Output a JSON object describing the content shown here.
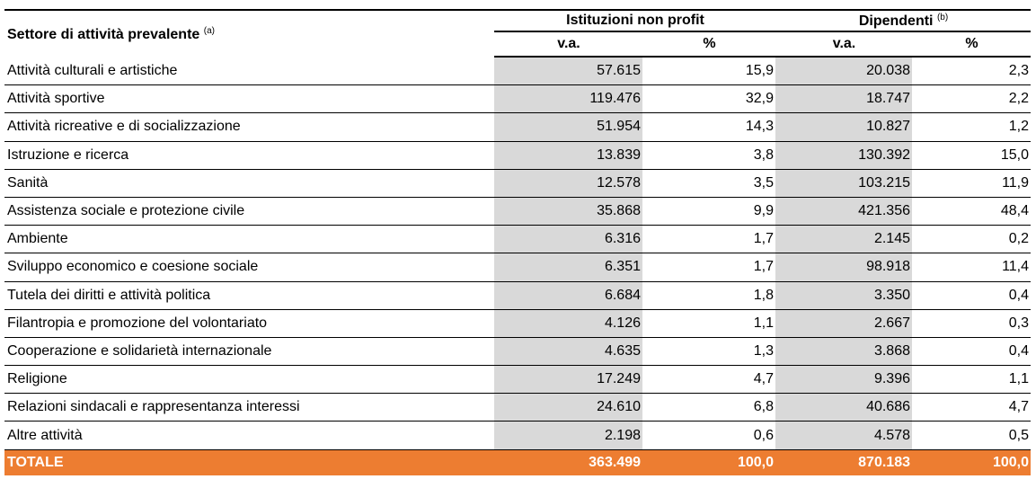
{
  "header": {
    "sector_label": "Settore di attività prevalente",
    "sector_note": "(a)",
    "group1_label": "Istituzioni non profit",
    "group2_label": "Dipendenti",
    "group2_note": "(b)",
    "sub_va": "v.a.",
    "sub_pct": "%"
  },
  "rows": [
    {
      "label": "Attività culturali e artistiche",
      "ist_va": "57.615",
      "ist_pct": "15,9",
      "dip_va": "20.038",
      "dip_pct": "2,3"
    },
    {
      "label": "Attività sportive",
      "ist_va": "119.476",
      "ist_pct": "32,9",
      "dip_va": "18.747",
      "dip_pct": "2,2"
    },
    {
      "label": "Attività ricreative e di socializzazione",
      "ist_va": "51.954",
      "ist_pct": "14,3",
      "dip_va": "10.827",
      "dip_pct": "1,2"
    },
    {
      "label": "Istruzione e ricerca",
      "ist_va": "13.839",
      "ist_pct": "3,8",
      "dip_va": "130.392",
      "dip_pct": "15,0"
    },
    {
      "label": "Sanità",
      "ist_va": "12.578",
      "ist_pct": "3,5",
      "dip_va": "103.215",
      "dip_pct": "11,9"
    },
    {
      "label": "Assistenza sociale e protezione civile",
      "ist_va": "35.868",
      "ist_pct": "9,9",
      "dip_va": "421.356",
      "dip_pct": "48,4"
    },
    {
      "label": "Ambiente",
      "ist_va": "6.316",
      "ist_pct": "1,7",
      "dip_va": "2.145",
      "dip_pct": "0,2"
    },
    {
      "label": "Sviluppo economico e coesione sociale",
      "ist_va": "6.351",
      "ist_pct": "1,7",
      "dip_va": "98.918",
      "dip_pct": "11,4"
    },
    {
      "label": "Tutela dei diritti e attività politica",
      "ist_va": "6.684",
      "ist_pct": "1,8",
      "dip_va": "3.350",
      "dip_pct": "0,4"
    },
    {
      "label": "Filantropia e promozione del volontariato",
      "ist_va": "4.126",
      "ist_pct": "1,1",
      "dip_va": "2.667",
      "dip_pct": "0,3"
    },
    {
      "label": "Cooperazione e solidarietà internazionale",
      "ist_va": "4.635",
      "ist_pct": "1,3",
      "dip_va": "3.868",
      "dip_pct": "0,4"
    },
    {
      "label": "Religione",
      "ist_va": "17.249",
      "ist_pct": "4,7",
      "dip_va": "9.396",
      "dip_pct": "1,1"
    },
    {
      "label": "Relazioni sindacali e rappresentanza interessi",
      "ist_va": "24.610",
      "ist_pct": "6,8",
      "dip_va": "40.686",
      "dip_pct": "4,7"
    },
    {
      "label": "Altre attività",
      "ist_va": "2.198",
      "ist_pct": "0,6",
      "dip_va": "4.578",
      "dip_pct": "0,5"
    }
  ],
  "total": {
    "label": "TOTALE",
    "ist_va": "363.499",
    "ist_pct": "100,0",
    "dip_va": "870.183",
    "dip_pct": "100,0"
  },
  "colors": {
    "shade": "#d9d9d9",
    "total_bg": "#ed7d31",
    "total_text": "#ffffff"
  }
}
